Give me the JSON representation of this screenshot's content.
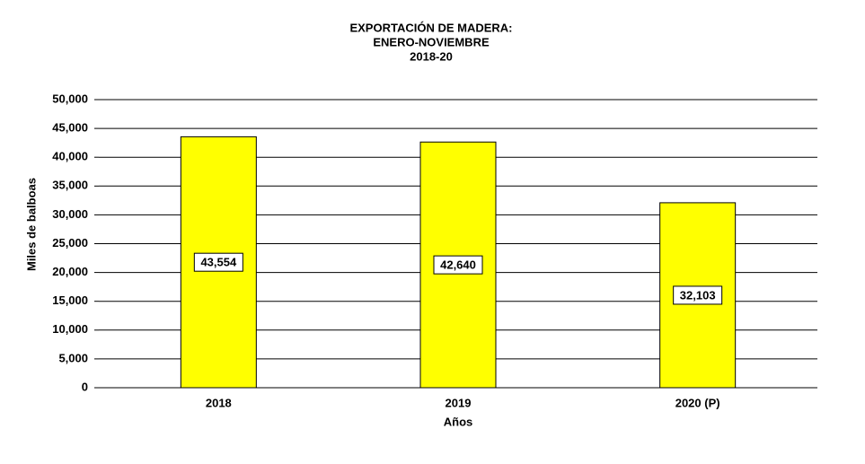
{
  "chart_data": {
    "type": "bar",
    "title": [
      "EXPORTACIÓN DE MADERA:",
      "ENERO-NOVIEMBRE",
      "2018-20"
    ],
    "categories": [
      "2018",
      "2019",
      "2020 (P)"
    ],
    "values": [
      43554,
      42640,
      32103
    ],
    "value_labels": [
      "43,554",
      "42,640",
      "32,103"
    ],
    "color": "#ffff00",
    "x_label": "Años",
    "y_label": "Miles de balboas",
    "ylim": [
      0,
      50000
    ],
    "yticks": [
      0,
      {
        "value": 5000,
        "label": "5,000"
      },
      {
        "value": 10000,
        "label": "10,000"
      },
      {
        "value": 15000,
        "label": "15,000"
      },
      {
        "value": 20000,
        "label": "20,000"
      },
      {
        "value": 25000,
        "label": "25,000"
      },
      {
        "value": 30000,
        "label": "30,000"
      },
      {
        "value": 35000,
        "label": "35,000"
      },
      {
        "value": 40000,
        "label": "40,000"
      },
      {
        "value": 45000,
        "label": "45,000"
      },
      {
        "value": 50000,
        "label": "50,000"
      }
    ],
    "grid": true
  }
}
